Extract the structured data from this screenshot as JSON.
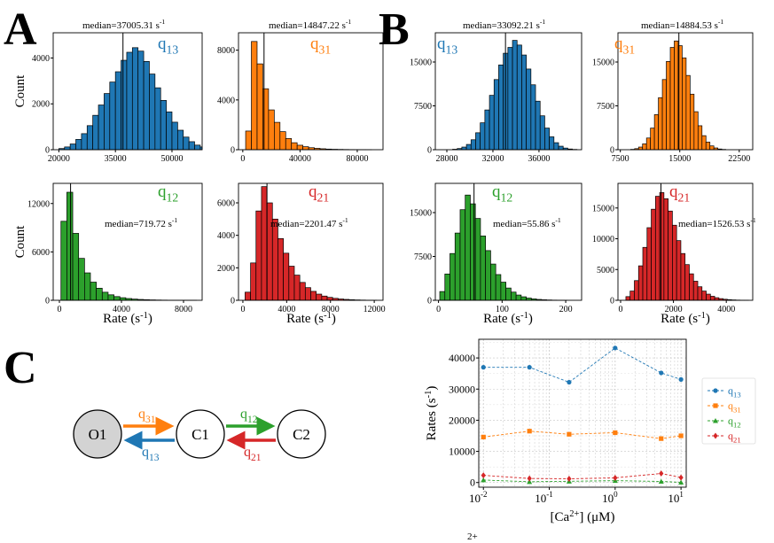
{
  "panel_labels": [
    "A",
    "B",
    "C"
  ],
  "colors": {
    "q13": "#1f77b4",
    "q31": "#ff7f0e",
    "q12": "#2ca02c",
    "q21": "#d62728",
    "node_fill_O1": "#d3d3d3"
  },
  "histogram_axis_labels": {
    "count": "Count",
    "rate": "Rate (s-1)"
  },
  "rate_labels": {
    "q13": {
      "base": "q",
      "sub": "13"
    },
    "q31": {
      "base": "q",
      "sub": "31"
    },
    "q12": {
      "base": "q",
      "sub": "12"
    },
    "q21": {
      "base": "q",
      "sub": "21"
    }
  },
  "median_unit": "s-1",
  "chart_data": [
    {
      "id": "A-q13",
      "type": "bar",
      "panel": "A",
      "rate": "q13",
      "median_label": "median=37005.31 s-1",
      "median": 37005.31,
      "xlim": [
        18500,
        58000
      ],
      "ylim": [
        0,
        5100
      ],
      "xticks": [
        20000,
        35000,
        50000
      ],
      "yticks": [
        0,
        2000,
        4000
      ],
      "bin_start": 20000,
      "bin_width": 1500,
      "values": [
        50,
        120,
        250,
        450,
        700,
        1050,
        1500,
        1950,
        2450,
        2950,
        3400,
        3900,
        4250,
        4450,
        4300,
        3850,
        3300,
        2700,
        2150,
        1650,
        1200,
        850,
        550,
        350,
        200,
        120,
        60,
        30
      ]
    },
    {
      "id": "A-q31",
      "type": "bar",
      "panel": "A",
      "rate": "q31",
      "median_label": "median=14847.22 s-1",
      "median": 14847.22,
      "xlim": [
        -3000,
        98000
      ],
      "ylim": [
        0,
        9400
      ],
      "xticks": [
        0,
        40000,
        80000
      ],
      "yticks": [
        0,
        4000,
        8000
      ],
      "bin_start": 2000,
      "bin_width": 4000,
      "values": [
        1500,
        8700,
        6900,
        4900,
        3200,
        2200,
        1450,
        900,
        560,
        360,
        240,
        160,
        110,
        75,
        50,
        35,
        25,
        18,
        12,
        8,
        5,
        3
      ]
    },
    {
      "id": "A-q12",
      "type": "bar",
      "panel": "A",
      "rate": "q12",
      "median_label": "median=719.72 s-1",
      "median": 719.72,
      "xlim": [
        -400,
        9200
      ],
      "ylim": [
        0,
        14500
      ],
      "xticks": [
        0,
        4000,
        8000
      ],
      "yticks": [
        0,
        6000,
        12000
      ],
      "bin_start": 100,
      "bin_width": 380,
      "values": [
        9800,
        13400,
        8300,
        5200,
        3400,
        2250,
        1500,
        1000,
        680,
        460,
        320,
        220,
        150,
        105,
        72,
        50,
        34,
        23,
        15,
        10,
        7,
        5,
        3
      ]
    },
    {
      "id": "A-q21",
      "type": "bar",
      "panel": "A",
      "rate": "q21",
      "median_label": "median=2201.47 s-1",
      "median": 2201.47,
      "xlim": [
        -400,
        12800
      ],
      "ylim": [
        0,
        7200
      ],
      "xticks": [
        0,
        4000,
        8000,
        12000
      ],
      "yticks": [
        0,
        2000,
        4000,
        6000
      ],
      "bin_start": 200,
      "bin_width": 500,
      "values": [
        500,
        2300,
        5500,
        7000,
        6000,
        5000,
        3800,
        2900,
        2100,
        1550,
        1100,
        780,
        550,
        380,
        260,
        180,
        120,
        80,
        55,
        35,
        22,
        14,
        8,
        5
      ]
    },
    {
      "id": "B-q13",
      "type": "bar",
      "panel": "B",
      "rate": "q13",
      "median_label": "median=33092.21 s-1",
      "median": 33092.21,
      "xlim": [
        27000,
        39700
      ],
      "ylim": [
        0,
        20000
      ],
      "xticks": [
        28000,
        32000,
        36000
      ],
      "yticks": [
        0,
        7500,
        15000
      ],
      "bin_start": 28500,
      "bin_width": 400,
      "values": [
        80,
        200,
        450,
        900,
        1700,
        2900,
        4600,
        6800,
        9300,
        12000,
        14500,
        16500,
        17500,
        18700,
        17900,
        16200,
        13800,
        11100,
        8300,
        5800,
        3700,
        2200,
        1200,
        600,
        280,
        120,
        50
      ]
    },
    {
      "id": "B-q31",
      "type": "bar",
      "panel": "B",
      "rate": "q31",
      "median_label": "median=14884.53 s-1",
      "median": 14884.53,
      "xlim": [
        7200,
        24200
      ],
      "ylim": [
        0,
        20000
      ],
      "xticks": [
        7500,
        15000,
        22500
      ],
      "yticks": [
        0,
        7500,
        15000
      ],
      "bin_start": 8800,
      "bin_width": 500,
      "values": [
        60,
        180,
        450,
        1000,
        2000,
        3700,
        6000,
        8900,
        12000,
        15100,
        17500,
        18600,
        17800,
        15700,
        12700,
        9500,
        6500,
        4100,
        2400,
        1300,
        650,
        300,
        120,
        50
      ]
    },
    {
      "id": "B-q12",
      "type": "bar",
      "panel": "B",
      "rate": "q12",
      "median_label": "median=55.86 s-1",
      "median": 55.86,
      "xlim": [
        -5,
        225
      ],
      "ylim": [
        0,
        20000
      ],
      "xticks": [
        0,
        100,
        200
      ],
      "yticks": [
        0,
        7500,
        15000
      ],
      "bin_start": 2,
      "bin_width": 8,
      "values": [
        1500,
        4500,
        8000,
        11500,
        15500,
        18000,
        16500,
        14000,
        11000,
        8500,
        6200,
        4400,
        3100,
        2100,
        1400,
        900,
        600,
        380,
        240,
        150,
        90,
        55,
        30,
        15,
        8
      ]
    },
    {
      "id": "B-q21",
      "type": "bar",
      "panel": "B",
      "rate": "q21",
      "median_label": "median=1526.53 s-1",
      "median": 1526.53,
      "xlim": [
        -100,
        5000
      ],
      "ylim": [
        0,
        19000
      ],
      "xticks": [
        0,
        2000,
        4000
      ],
      "yticks": [
        0,
        5000,
        10000,
        15000
      ],
      "bin_start": 200,
      "bin_width": 160,
      "values": [
        600,
        1500,
        3200,
        5600,
        8600,
        11800,
        14800,
        16900,
        17500,
        16500,
        14500,
        12200,
        9700,
        7600,
        5800,
        4300,
        3100,
        2200,
        1500,
        1000,
        650,
        420,
        270,
        170,
        100,
        60,
        35,
        20,
        10
      ]
    },
    {
      "id": "C-rates",
      "type": "line",
      "panel": "C",
      "xlabel": "[Ca2+] (μM)",
      "ylabel": "Rates (s-1)",
      "xscale": "log",
      "grid": true,
      "legend": "right",
      "xlim": [
        0.0085,
        12
      ],
      "ylim": [
        -1500,
        46000
      ],
      "xticks": [
        "10^-2",
        "10^-1",
        "10^0",
        "10^1"
      ],
      "yticks": [
        0,
        10000,
        20000,
        30000,
        40000
      ],
      "x": [
        0.01,
        0.05,
        0.2,
        1,
        5,
        10
      ],
      "series": [
        {
          "name": "q13",
          "marker": "circle",
          "values": [
            37000,
            37000,
            32200,
            43200,
            35200,
            33100
          ]
        },
        {
          "name": "q31",
          "marker": "square",
          "values": [
            14600,
            16500,
            15500,
            16000,
            14100,
            15000
          ]
        },
        {
          "name": "q12",
          "marker": "triangle",
          "values": [
            800,
            250,
            400,
            600,
            350,
            60
          ]
        },
        {
          "name": "q21",
          "marker": "diamond",
          "values": [
            2300,
            1300,
            1200,
            1500,
            2900,
            1600
          ]
        }
      ]
    }
  ],
  "scheme": {
    "nodes": [
      {
        "id": "O1",
        "label": "O1"
      },
      {
        "id": "C1",
        "label": "C1"
      },
      {
        "id": "C2",
        "label": "C2"
      }
    ],
    "arrows": [
      {
        "rate": "q31",
        "from": "O1",
        "to": "C1"
      },
      {
        "rate": "q13",
        "from": "C1",
        "to": "O1"
      },
      {
        "rate": "q12",
        "from": "C1",
        "to": "C2"
      },
      {
        "rate": "q21",
        "from": "C2",
        "to": "C1"
      }
    ]
  },
  "bottom_caption_fragment": "2+"
}
